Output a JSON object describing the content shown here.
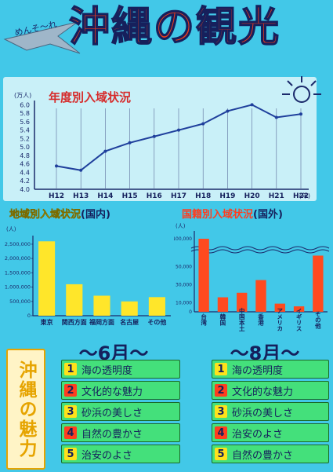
{
  "header": {
    "tagline": "めんそ〜れ",
    "title": "沖縄の観光"
  },
  "charts": [
    {
      "type": "line",
      "title": "年度別入域状況",
      "y_unit": "(万人)",
      "x_unit": "(年)",
      "x": [
        "H12",
        "H13",
        "H14",
        "H15",
        "H16",
        "H17",
        "H18",
        "H19",
        "H20",
        "H21",
        "H22"
      ],
      "y_ticks": [
        "4.0",
        "4.2",
        "4.4",
        "4.6",
        "4.8",
        "5.0",
        "5.2",
        "5.4",
        "5.6",
        "5.8",
        "6.0"
      ],
      "ylim": [
        4.0,
        6.1
      ],
      "values": [
        4.55,
        4.45,
        4.9,
        5.1,
        5.25,
        5.4,
        5.55,
        5.85,
        6.0,
        5.7,
        5.78
      ],
      "grid": "vertical",
      "color": "#1f3f9c"
    },
    {
      "type": "bar",
      "title": "地域別入域状況",
      "subtitle": "(国内)",
      "unit": "(人)",
      "categories": [
        "東京",
        "関西方面",
        "福岡方面",
        "名古屋",
        "その他"
      ],
      "values": [
        2600000,
        1100000,
        700000,
        500000,
        650000
      ],
      "y_ticks": [
        "0",
        "500,000",
        "1,000,000",
        "1,500,000",
        "2,000,000",
        "2,500,000"
      ],
      "ylim": [
        0,
        2800000
      ],
      "color": "#ffe62a"
    },
    {
      "type": "bar",
      "title": "国籍別入域状況",
      "subtitle": "(国外)",
      "unit": "(人)",
      "categories": [
        "台湾",
        "韓国",
        "中国本土",
        "香港",
        "アメリカ",
        "イギリス",
        "その他"
      ],
      "values": [
        100000,
        16000,
        21000,
        35000,
        9000,
        6000,
        62000
      ],
      "y_ticks": [
        "0",
        "10,000",
        "30,000",
        "50,000",
        "100,000"
      ],
      "y_broken": true,
      "color": "#ff4a1f"
    }
  ],
  "appeal_label": "沖縄の魅力",
  "lists": [
    {
      "month": "6月",
      "items": [
        {
          "num": "1",
          "text": "海の透明度"
        },
        {
          "num": "2",
          "text": "文化的な魅力"
        },
        {
          "num": "3",
          "text": "砂浜の美しさ"
        },
        {
          "num": "4",
          "text": "自然の豊かさ"
        },
        {
          "num": "5",
          "text": "治安のよさ"
        }
      ]
    },
    {
      "month": "8月",
      "items": [
        {
          "num": "1",
          "text": "海の透明度"
        },
        {
          "num": "2",
          "text": "文化的な魅力"
        },
        {
          "num": "3",
          "text": "砂浜の美しさ"
        },
        {
          "num": "4",
          "text": "治安のよさ"
        },
        {
          "num": "5",
          "text": "自然の豊かさ"
        }
      ]
    }
  ],
  "colors": {
    "background": "#42c8e8",
    "list_bar": "#44e07b",
    "number_badge_odd": "#ffe11a",
    "number_badge_even": "#ff3d1f",
    "title_fill": "#2fb34a"
  }
}
